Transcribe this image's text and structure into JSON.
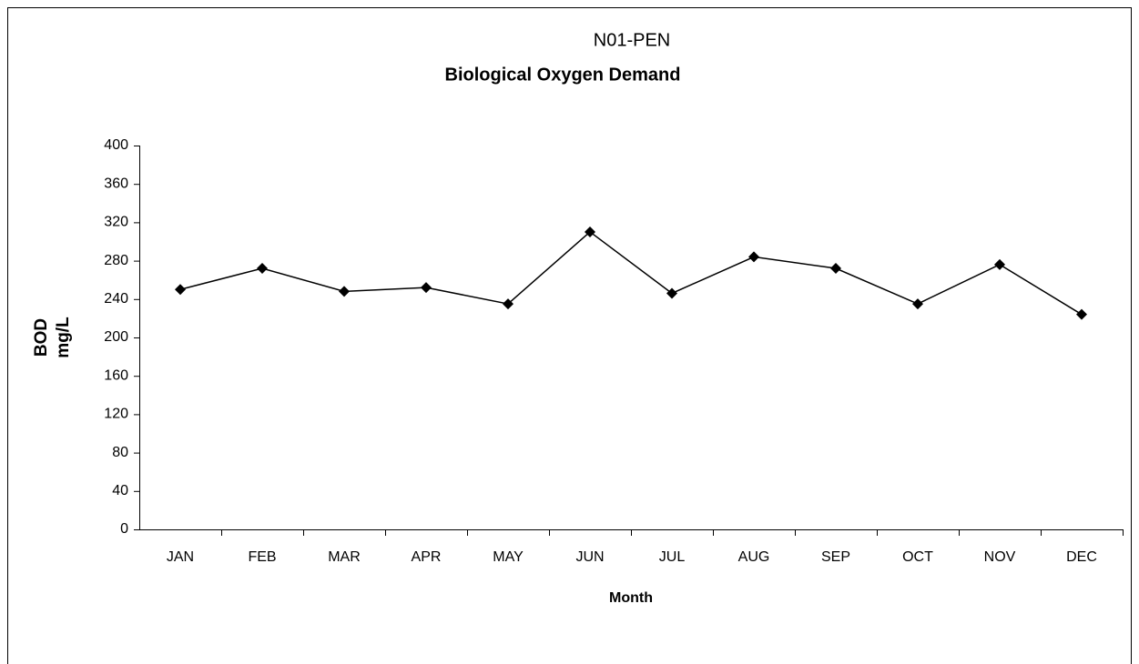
{
  "chart_data": {
    "type": "line",
    "title": "N01-PEN",
    "subtitle": "Biological Oxygen Demand",
    "y_label": [
      "BOD",
      "mg/L"
    ],
    "x_label": "Month",
    "categories": [
      "JAN",
      "FEB",
      "MAR",
      "APR",
      "MAY",
      "JUN",
      "JUL",
      "AUG",
      "SEP",
      "OCT",
      "NOV",
      "DEC"
    ],
    "values": [
      250,
      272,
      248,
      252,
      235,
      310,
      246,
      284,
      272,
      235,
      276,
      224
    ],
    "color": "#000000",
    "ylim": [
      0,
      400
    ],
    "yticks": [
      0,
      40,
      80,
      120,
      160,
      200,
      240,
      280,
      320,
      360,
      400
    ],
    "grid": false
  }
}
